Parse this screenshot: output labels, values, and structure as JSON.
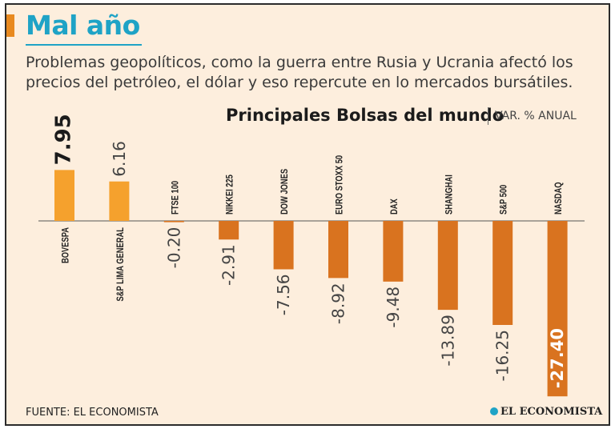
{
  "header": {
    "title": "Mal año",
    "subtitle": "Problemas geopolíticos, como la guerra entre Rusia y Ucrania afectó los precios del petróleo, el dólar y eso repercute en lo mercados bursátiles."
  },
  "chart_data": {
    "type": "bar",
    "title": "Principales Bolsas del mundo",
    "subtitle": "VAR. % ANUAL",
    "categories": [
      "BOVESPA",
      "S&P LIMA GENERAL",
      "FTSE 100",
      "NIKKEI 225",
      "DOW JONES",
      "EURO STOXX 50",
      "DAX",
      "SHANGHAI",
      "S&P 500",
      "NASDAQ"
    ],
    "values": [
      7.95,
      6.16,
      -0.2,
      -2.91,
      -7.56,
      -8.92,
      -9.48,
      -13.89,
      -16.25,
      -27.4
    ],
    "value_labels": [
      "7.95",
      "6.16",
      "-0.20",
      "-2.91",
      "-7.56",
      "-8.92",
      "-9.48",
      "-13.89",
      "-16.25",
      "-27.40"
    ],
    "ylim": [
      -28,
      10
    ],
    "colors": {
      "positive": "#f5a12d",
      "negative": "#d9731f"
    }
  },
  "footer": {
    "source": "FUENTE: EL ECONOMISTA",
    "logo": "EL ECONOMISTA"
  }
}
